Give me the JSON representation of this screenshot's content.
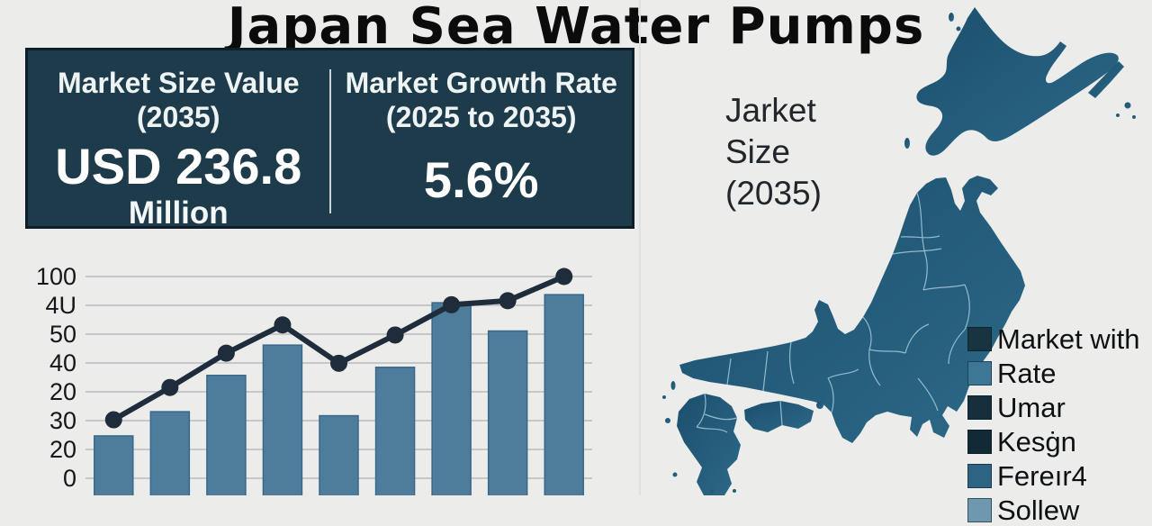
{
  "title": "Japan Sea Water Pumps",
  "stats_panel": {
    "left": {
      "label_line1": "Market Size Value",
      "label_line2": "(2035)",
      "value": "USD 236.8",
      "unit": "Million"
    },
    "right": {
      "label_line1": "Market Growth Rate",
      "label_line2": "(2025 to 2035)",
      "value": "5.6%"
    }
  },
  "map_section": {
    "caption_lines": [
      "Jarket",
      "Size",
      "(2035)"
    ],
    "legend": [
      {
        "label": "Market with",
        "color": "#173440"
      },
      {
        "label": "Rate",
        "color": "#3d7795"
      },
      {
        "label": "Umar",
        "color": "#152f3c"
      },
      {
        "label": "Kesġn",
        "color": "#122936"
      },
      {
        "label": "Fereır4",
        "color": "#2d6484"
      },
      {
        "label": "Sollew",
        "color": "#6e98ae"
      }
    ]
  },
  "chart_data": {
    "type": "bar",
    "title": "",
    "xlabel": "",
    "ylabel": "",
    "categories": [
      "",
      "",
      "",
      "",
      "",
      "",
      "",
      "",
      ""
    ],
    "y_tick_labels": [
      "100",
      "4U",
      "50",
      "40",
      "20",
      "30",
      "20",
      "0"
    ],
    "ylim": [
      0,
      100
    ],
    "grid": true,
    "legend_position": "none",
    "series": [
      {
        "name": "market-size-bars",
        "type": "bar",
        "values": [
          21,
          33,
          51,
          66,
          31,
          55,
          87,
          73,
          91
        ]
      },
      {
        "name": "trend-line",
        "type": "line",
        "values": [
          29,
          45,
          62,
          76,
          57,
          71,
          86,
          88,
          100
        ]
      }
    ]
  },
  "colors": {
    "background": "#ecedeb",
    "panel_bg": "#1d3b4a",
    "panel_border": "#0e1f29",
    "bar_fill": "#4e7c9b",
    "bar_stroke": "#39688a",
    "line": "#1e2c3c",
    "gridline": "#b7bcbe",
    "map_fill_dark": "#1b4f6d",
    "map_fill_light": "#2d6988",
    "map_border_lines": "#a6cbdb"
  }
}
